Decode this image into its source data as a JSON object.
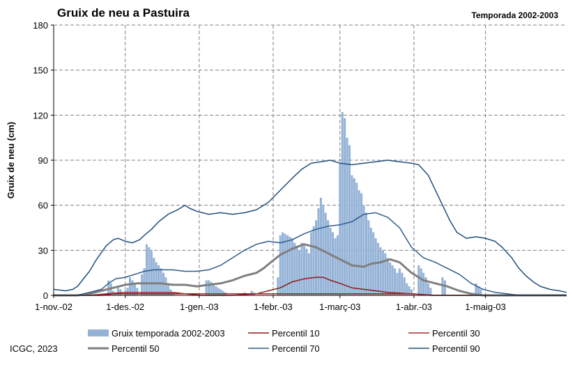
{
  "chart_data": {
    "type": "bar+line",
    "title": "Gruix de neu a Pastuira",
    "subtitle": "Temporada 2002-2003",
    "xlabel": "",
    "ylabel": "Gruix de neu (cm)",
    "ylim": [
      0,
      180
    ],
    "yticks": [
      0,
      30,
      60,
      90,
      120,
      150,
      180
    ],
    "x_range_days": [
      0,
      215
    ],
    "xticks": [
      {
        "day": 0,
        "label": "1-nov.-02"
      },
      {
        "day": 30,
        "label": "1-des.-02"
      },
      {
        "day": 61,
        "label": "1-gen.-03"
      },
      {
        "day": 92,
        "label": "1-febr.-03"
      },
      {
        "day": 120,
        "label": "1-març-03"
      },
      {
        "day": 151,
        "label": "1-abr.-03"
      },
      {
        "day": 181,
        "label": "1-maig-03"
      }
    ],
    "grid": "horizontal dashed",
    "bars": {
      "name": "Gruix temporada 2002-2003",
      "color": "#95b3d7",
      "points": [
        [
          23,
          10
        ],
        [
          24,
          8
        ],
        [
          25,
          3
        ],
        [
          26,
          2
        ],
        [
          27,
          5
        ],
        [
          28,
          4
        ],
        [
          30,
          3
        ],
        [
          31,
          5
        ],
        [
          32,
          12
        ],
        [
          33,
          10
        ],
        [
          34,
          8
        ],
        [
          35,
          5
        ],
        [
          37,
          14
        ],
        [
          38,
          18
        ],
        [
          39,
          34
        ],
        [
          40,
          32
        ],
        [
          41,
          30
        ],
        [
          42,
          25
        ],
        [
          43,
          22
        ],
        [
          44,
          20
        ],
        [
          45,
          18
        ],
        [
          46,
          15
        ],
        [
          47,
          12
        ],
        [
          48,
          8
        ],
        [
          49,
          4
        ],
        [
          50,
          2
        ],
        [
          64,
          10
        ],
        [
          65,
          10
        ],
        [
          66,
          9
        ],
        [
          67,
          8
        ],
        [
          68,
          6
        ],
        [
          69,
          5
        ],
        [
          70,
          4
        ],
        [
          71,
          3
        ],
        [
          72,
          2
        ],
        [
          80,
          2
        ],
        [
          83,
          3
        ],
        [
          84,
          2
        ],
        [
          94,
          12
        ],
        [
          95,
          40
        ],
        [
          96,
          42
        ],
        [
          97,
          41
        ],
        [
          98,
          40
        ],
        [
          99,
          39
        ],
        [
          100,
          38
        ],
        [
          101,
          35
        ],
        [
          102,
          33
        ],
        [
          103,
          30
        ],
        [
          104,
          35
        ],
        [
          105,
          33
        ],
        [
          106,
          31
        ],
        [
          107,
          28
        ],
        [
          108,
          42
        ],
        [
          109,
          46
        ],
        [
          110,
          50
        ],
        [
          111,
          58
        ],
        [
          112,
          65
        ],
        [
          113,
          60
        ],
        [
          114,
          55
        ],
        [
          115,
          50
        ],
        [
          116,
          45
        ],
        [
          117,
          42
        ],
        [
          118,
          38
        ],
        [
          119,
          40
        ],
        [
          120,
          88
        ],
        [
          121,
          122
        ],
        [
          122,
          118
        ],
        [
          123,
          105
        ],
        [
          124,
          100
        ],
        [
          125,
          80
        ],
        [
          126,
          78
        ],
        [
          127,
          75
        ],
        [
          128,
          70
        ],
        [
          129,
          68
        ],
        [
          130,
          60
        ],
        [
          131,
          55
        ],
        [
          132,
          50
        ],
        [
          133,
          45
        ],
        [
          134,
          42
        ],
        [
          135,
          38
        ],
        [
          136,
          35
        ],
        [
          137,
          32
        ],
        [
          138,
          30
        ],
        [
          139,
          28
        ],
        [
          140,
          25
        ],
        [
          141,
          22
        ],
        [
          142,
          20
        ],
        [
          143,
          18
        ],
        [
          144,
          15
        ],
        [
          145,
          18
        ],
        [
          146,
          15
        ],
        [
          147,
          12
        ],
        [
          148,
          8
        ],
        [
          149,
          6
        ],
        [
          150,
          4
        ],
        [
          153,
          20
        ],
        [
          154,
          18
        ],
        [
          155,
          15
        ],
        [
          156,
          12
        ],
        [
          157,
          8
        ],
        [
          158,
          5
        ],
        [
          163,
          12
        ],
        [
          164,
          10
        ],
        [
          177,
          8
        ],
        [
          178,
          6
        ],
        [
          179,
          4
        ]
      ]
    },
    "series": [
      {
        "name": "Percentil 10",
        "color": "#8b1a1a",
        "width": 1.5,
        "points": [
          [
            0,
            0
          ],
          [
            20,
            0
          ],
          [
            25,
            1
          ],
          [
            40,
            1
          ],
          [
            55,
            1
          ],
          [
            62,
            0
          ],
          [
            75,
            0
          ],
          [
            85,
            1
          ],
          [
            90,
            3
          ],
          [
            95,
            5
          ],
          [
            100,
            9
          ],
          [
            105,
            11
          ],
          [
            110,
            12
          ],
          [
            113,
            12
          ],
          [
            116,
            10
          ],
          [
            120,
            8
          ],
          [
            125,
            5
          ],
          [
            130,
            4
          ],
          [
            135,
            3
          ],
          [
            140,
            2
          ],
          [
            150,
            1
          ],
          [
            160,
            0
          ],
          [
            215,
            0
          ]
        ]
      },
      {
        "name": "Percentil 30",
        "color": "#a52a2a",
        "width": 1.5,
        "points": [
          [
            0,
            0
          ],
          [
            15,
            0
          ],
          [
            22,
            1
          ],
          [
            30,
            2
          ],
          [
            40,
            2
          ],
          [
            50,
            2
          ],
          [
            55,
            1
          ],
          [
            62,
            1
          ],
          [
            70,
            1
          ],
          [
            78,
            1
          ],
          [
            85,
            1
          ],
          [
            95,
            1
          ],
          [
            105,
            1
          ],
          [
            115,
            1
          ],
          [
            120,
            1
          ],
          [
            130,
            1
          ],
          [
            140,
            1
          ],
          [
            150,
            1
          ],
          [
            158,
            0
          ],
          [
            215,
            0
          ]
        ]
      },
      {
        "name": "Percentil 50",
        "color": "#7f7f7f",
        "width": 3,
        "points": [
          [
            0,
            0
          ],
          [
            10,
            0
          ],
          [
            15,
            1
          ],
          [
            20,
            3
          ],
          [
            25,
            5
          ],
          [
            30,
            7
          ],
          [
            35,
            8
          ],
          [
            40,
            8
          ],
          [
            45,
            8
          ],
          [
            50,
            7
          ],
          [
            55,
            7
          ],
          [
            60,
            6
          ],
          [
            65,
            7
          ],
          [
            70,
            8
          ],
          [
            75,
            10
          ],
          [
            80,
            13
          ],
          [
            85,
            15
          ],
          [
            88,
            18
          ],
          [
            91,
            22
          ],
          [
            95,
            27
          ],
          [
            100,
            31
          ],
          [
            105,
            34
          ],
          [
            110,
            32
          ],
          [
            115,
            28
          ],
          [
            120,
            24
          ],
          [
            125,
            20
          ],
          [
            130,
            19
          ],
          [
            133,
            21
          ],
          [
            137,
            22
          ],
          [
            141,
            24
          ],
          [
            145,
            22
          ],
          [
            150,
            15
          ],
          [
            155,
            10
          ],
          [
            160,
            8
          ],
          [
            165,
            6
          ],
          [
            170,
            3
          ],
          [
            175,
            1
          ],
          [
            180,
            0
          ],
          [
            215,
            0
          ]
        ]
      },
      {
        "name": "Percentil 70",
        "color": "#2e5a8a",
        "width": 1.5,
        "points": [
          [
            0,
            0
          ],
          [
            10,
            0
          ],
          [
            15,
            2
          ],
          [
            20,
            4
          ],
          [
            23,
            8
          ],
          [
            26,
            11
          ],
          [
            30,
            12
          ],
          [
            34,
            14
          ],
          [
            38,
            16
          ],
          [
            42,
            17
          ],
          [
            46,
            17
          ],
          [
            50,
            17
          ],
          [
            55,
            16
          ],
          [
            60,
            16
          ],
          [
            65,
            17
          ],
          [
            70,
            20
          ],
          [
            75,
            25
          ],
          [
            80,
            30
          ],
          [
            85,
            34
          ],
          [
            90,
            36
          ],
          [
            95,
            35
          ],
          [
            100,
            37
          ],
          [
            105,
            41
          ],
          [
            110,
            44
          ],
          [
            115,
            46
          ],
          [
            120,
            47
          ],
          [
            125,
            49
          ],
          [
            130,
            54
          ],
          [
            135,
            55
          ],
          [
            140,
            52
          ],
          [
            145,
            45
          ],
          [
            150,
            32
          ],
          [
            155,
            25
          ],
          [
            160,
            22
          ],
          [
            165,
            18
          ],
          [
            170,
            14
          ],
          [
            175,
            8
          ],
          [
            180,
            4
          ],
          [
            185,
            2
          ],
          [
            190,
            1
          ],
          [
            195,
            0
          ],
          [
            215,
            0
          ]
        ]
      },
      {
        "name": "Percentil 90",
        "color": "#1f4e79",
        "width": 1.5,
        "points": [
          [
            0,
            4
          ],
          [
            5,
            3
          ],
          [
            8,
            4
          ],
          [
            10,
            6
          ],
          [
            12,
            10
          ],
          [
            15,
            16
          ],
          [
            18,
            24
          ],
          [
            22,
            33
          ],
          [
            25,
            37
          ],
          [
            27,
            38
          ],
          [
            30,
            36
          ],
          [
            33,
            35
          ],
          [
            36,
            37
          ],
          [
            38,
            40
          ],
          [
            41,
            44
          ],
          [
            44,
            49
          ],
          [
            48,
            54
          ],
          [
            52,
            57
          ],
          [
            55,
            60
          ],
          [
            57,
            58
          ],
          [
            60,
            56
          ],
          [
            65,
            54
          ],
          [
            70,
            55
          ],
          [
            75,
            54
          ],
          [
            80,
            55
          ],
          [
            85,
            57
          ],
          [
            90,
            62
          ],
          [
            95,
            70
          ],
          [
            100,
            78
          ],
          [
            104,
            84
          ],
          [
            108,
            88
          ],
          [
            112,
            89
          ],
          [
            116,
            90
          ],
          [
            120,
            88
          ],
          [
            125,
            87
          ],
          [
            130,
            88
          ],
          [
            135,
            89
          ],
          [
            140,
            90
          ],
          [
            145,
            89
          ],
          [
            150,
            88
          ],
          [
            153,
            87
          ],
          [
            157,
            80
          ],
          [
            160,
            70
          ],
          [
            163,
            60
          ],
          [
            166,
            50
          ],
          [
            169,
            42
          ],
          [
            173,
            38
          ],
          [
            177,
            39
          ],
          [
            181,
            38
          ],
          [
            185,
            36
          ],
          [
            188,
            32
          ],
          [
            192,
            25
          ],
          [
            195,
            18
          ],
          [
            198,
            13
          ],
          [
            201,
            9
          ],
          [
            204,
            6
          ],
          [
            208,
            4
          ],
          [
            212,
            3
          ],
          [
            215,
            2
          ]
        ]
      }
    ],
    "legend": {
      "position": "bottom",
      "items": [
        {
          "label": "Gruix temporada 2002-2003",
          "kind": "bar",
          "color": "#95b3d7"
        },
        {
          "label": "Percentil 10",
          "kind": "line",
          "color": "#8b1a1a"
        },
        {
          "label": "Percentil 30",
          "kind": "line",
          "color": "#a52a2a"
        },
        {
          "label": "Percentil 50",
          "kind": "line",
          "color": "#7f7f7f"
        },
        {
          "label": "Percentil 70",
          "kind": "line",
          "color": "#2e5a8a"
        },
        {
          "label": "Percentil 90",
          "kind": "line",
          "color": "#1f4e79"
        }
      ]
    }
  },
  "footer": {
    "credit": "ICGC, 2023"
  }
}
